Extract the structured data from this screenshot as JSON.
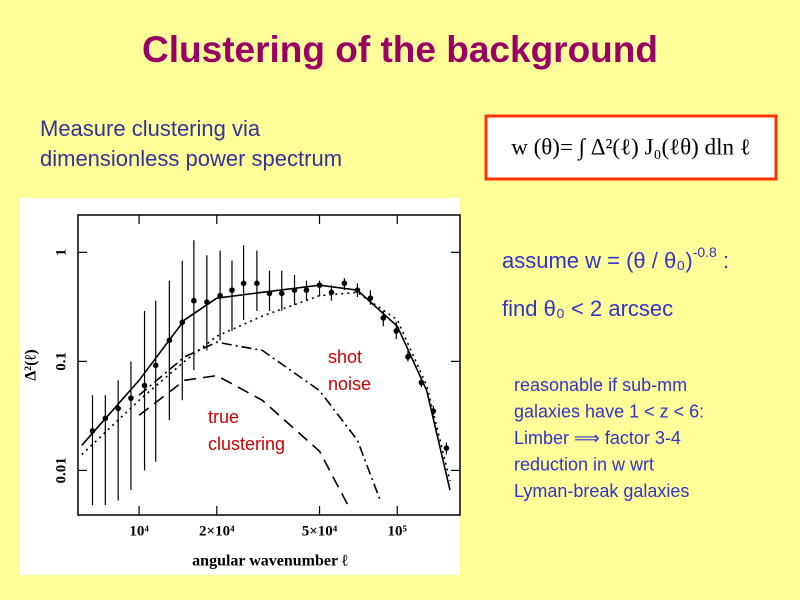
{
  "title": "Clustering of the background",
  "intro": [
    "Measure clustering via",
    "dimensionless power spectrum"
  ],
  "formula": "w (θ)= ∫ Δ²(ℓ) J₀(ℓθ) dln ℓ",
  "assume": {
    "text": "assume w = (θ / θ₀)",
    "exponent": "-0.8",
    "tail": " :"
  },
  "find": "find  θ₀ < 2 arcsec",
  "note": [
    "reasonable if sub-mm",
    "galaxies have 1 < z < 6:",
    "Limber ⟹ factor 3-4",
    "reduction in w wrt",
    "Lyman-break galaxies"
  ],
  "chart_data": {
    "type": "scatter",
    "xlabel": "angular wavenumber ℓ",
    "ylabel": "Δ²(ℓ)",
    "xlog": true,
    "ylog": true,
    "xlim": [
      5800,
      175000
    ],
    "ylim": [
      0.0039,
      2.2
    ],
    "xticks": [
      {
        "value": 10000,
        "label": "10⁴"
      },
      {
        "value": 20000,
        "label": "2×10⁴"
      },
      {
        "value": 50000,
        "label": "5×10⁴"
      },
      {
        "value": 100000,
        "label": "10⁵"
      }
    ],
    "yticks": [
      0.01,
      0.1,
      1
    ],
    "points": {
      "color": "#000000",
      "x": [
        6600,
        7400,
        8300,
        9300,
        10500,
        11600,
        13100,
        14700,
        16300,
        18300,
        20600,
        22900,
        25400,
        28600,
        32000,
        35700,
        40000,
        44500,
        50000,
        55600,
        62400,
        70100,
        78700,
        88300,
        99100,
        110000,
        124000,
        138000,
        155000
      ],
      "values": [
        0.023,
        0.03,
        0.037,
        0.046,
        0.06,
        0.092,
        0.156,
        0.228,
        0.36,
        0.35,
        0.4,
        0.45,
        0.52,
        0.52,
        0.42,
        0.42,
        0.45,
        0.45,
        0.5,
        0.43,
        0.52,
        0.45,
        0.38,
        0.25,
        0.19,
        0.11,
        0.064,
        0.035,
        0.016
      ],
      "lower": [
        0.0048,
        0.0048,
        0.0053,
        0.0066,
        0.01,
        0.012,
        0.029,
        0.044,
        0.083,
        0.126,
        0.156,
        0.19,
        0.24,
        0.29,
        0.29,
        0.29,
        0.33,
        0.36,
        0.4,
        0.36,
        0.45,
        0.39,
        0.33,
        0.21,
        0.16,
        0.1,
        0.058,
        0.032,
        0.014
      ],
      "upper": [
        0.049,
        0.049,
        0.067,
        0.1,
        0.29,
        0.36,
        0.55,
        0.84,
        1.29,
        0.94,
        1.04,
        0.84,
        1.16,
        1.04,
        0.68,
        0.68,
        0.62,
        0.55,
        0.55,
        0.5,
        0.58,
        0.52,
        0.45,
        0.29,
        0.23,
        0.126,
        0.071,
        0.039,
        0.018
      ]
    },
    "curves": [
      {
        "dash": "solid",
        "color": "#000000",
        "x": [
          6000,
          10000,
          15000,
          20000,
          30000,
          50000,
          70000,
          100000,
          130000,
          160000
        ],
        "values": [
          0.017,
          0.067,
          0.24,
          0.38,
          0.43,
          0.5,
          0.45,
          0.21,
          0.054,
          0.0066
        ]
      },
      {
        "dash": "dotted",
        "color": "#000000",
        "x": [
          6000,
          10000,
          15000,
          20000,
          30000,
          50000,
          70000,
          100000,
          130000,
          160000
        ],
        "values": [
          0.014,
          0.044,
          0.1,
          0.17,
          0.26,
          0.4,
          0.43,
          0.24,
          0.06,
          0.008
        ]
      },
      {
        "dash": "dashdot",
        "color": "#000000",
        "x": [
          10000,
          15000,
          20000,
          30000,
          50000,
          70000,
          86000
        ],
        "values": [
          0.049,
          0.11,
          0.15,
          0.126,
          0.054,
          0.019,
          0.0053
        ]
      },
      {
        "dash": "dashed",
        "color": "#000000",
        "x": [
          10000,
          15000,
          20000,
          30000,
          50000,
          66000
        ],
        "values": [
          0.032,
          0.067,
          0.074,
          0.044,
          0.015,
          0.0043
        ]
      }
    ],
    "annotations": [
      {
        "lines": [
          "shot",
          "noise"
        ],
        "color": "#cc0000"
      },
      {
        "lines": [
          "true",
          "clustering"
        ],
        "color": "#cc0000"
      }
    ]
  }
}
